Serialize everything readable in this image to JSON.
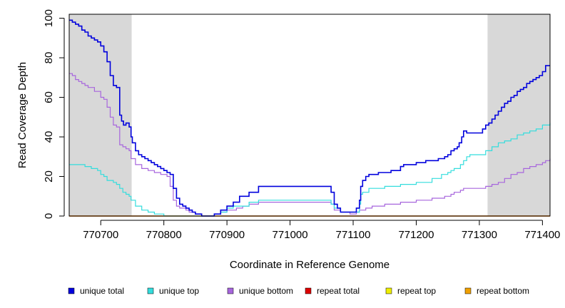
{
  "chart_data": {
    "type": "line",
    "title": "",
    "xlabel": "Coordinate in Reference Genome",
    "ylabel": "Read Coverage Depth",
    "xlim": [
      770650,
      771412
    ],
    "ylim": [
      0,
      102
    ],
    "x_ticks": [
      770700,
      770800,
      770900,
      771000,
      771100,
      771200,
      771300,
      771400
    ],
    "y_ticks": [
      0,
      20,
      40,
      60,
      80,
      100
    ],
    "grid": false,
    "legend_position": "bottom",
    "shaded_regions": [
      {
        "start": 770650,
        "end": 770749,
        "color": "#d8d8d8"
      },
      {
        "start": 771313,
        "end": 771412,
        "color": "#d8d8d8"
      }
    ],
    "series": [
      {
        "name": "unique total",
        "color": "#0000dd",
        "points": [
          [
            770650,
            99
          ],
          [
            770655,
            98
          ],
          [
            770660,
            97
          ],
          [
            770665,
            96
          ],
          [
            770670,
            94
          ],
          [
            770675,
            93
          ],
          [
            770680,
            91
          ],
          [
            770685,
            90
          ],
          [
            770690,
            89
          ],
          [
            770695,
            88
          ],
          [
            770700,
            86
          ],
          [
            770705,
            83
          ],
          [
            770710,
            78
          ],
          [
            770715,
            71
          ],
          [
            770720,
            66
          ],
          [
            770725,
            65
          ],
          [
            770730,
            51
          ],
          [
            770733,
            48
          ],
          [
            770736,
            46
          ],
          [
            770740,
            47
          ],
          [
            770745,
            45
          ],
          [
            770748,
            40
          ],
          [
            770750,
            37
          ],
          [
            770755,
            33
          ],
          [
            770760,
            31
          ],
          [
            770765,
            30
          ],
          [
            770770,
            29
          ],
          [
            770775,
            28
          ],
          [
            770780,
            27
          ],
          [
            770785,
            26
          ],
          [
            770790,
            25
          ],
          [
            770795,
            24
          ],
          [
            770800,
            23
          ],
          [
            770805,
            22
          ],
          [
            770810,
            21
          ],
          [
            770815,
            14
          ],
          [
            770820,
            9
          ],
          [
            770825,
            6
          ],
          [
            770830,
            5
          ],
          [
            770835,
            4
          ],
          [
            770840,
            3
          ],
          [
            770845,
            2
          ],
          [
            770850,
            1
          ],
          [
            770860,
            0
          ],
          [
            770870,
            0
          ],
          [
            770880,
            1
          ],
          [
            770890,
            3
          ],
          [
            770900,
            5
          ],
          [
            770910,
            7
          ],
          [
            770920,
            10
          ],
          [
            770935,
            12
          ],
          [
            770950,
            15
          ],
          [
            771060,
            15
          ],
          [
            771065,
            12
          ],
          [
            771070,
            6
          ],
          [
            771075,
            4
          ],
          [
            771080,
            2
          ],
          [
            771100,
            2
          ],
          [
            771105,
            4
          ],
          [
            771110,
            8
          ],
          [
            771112,
            15
          ],
          [
            771115,
            18
          ],
          [
            771120,
            20
          ],
          [
            771125,
            21
          ],
          [
            771140,
            22
          ],
          [
            771160,
            23
          ],
          [
            771175,
            25
          ],
          [
            771180,
            26
          ],
          [
            771200,
            27
          ],
          [
            771215,
            28
          ],
          [
            771235,
            29
          ],
          [
            771245,
            30
          ],
          [
            771250,
            31
          ],
          [
            771255,
            33
          ],
          [
            771260,
            34
          ],
          [
            771265,
            35
          ],
          [
            771268,
            37
          ],
          [
            771272,
            40
          ],
          [
            771275,
            43
          ],
          [
            771280,
            42
          ],
          [
            771300,
            42
          ],
          [
            771305,
            44
          ],
          [
            771310,
            46
          ],
          [
            771315,
            47
          ],
          [
            771320,
            49
          ],
          [
            771325,
            51
          ],
          [
            771330,
            53
          ],
          [
            771335,
            55
          ],
          [
            771340,
            57
          ],
          [
            771345,
            58
          ],
          [
            771350,
            60
          ],
          [
            771355,
            61
          ],
          [
            771360,
            63
          ],
          [
            771365,
            64
          ],
          [
            771370,
            65
          ],
          [
            771375,
            67
          ],
          [
            771380,
            68
          ],
          [
            771385,
            69
          ],
          [
            771390,
            70
          ],
          [
            771395,
            71
          ],
          [
            771400,
            73
          ],
          [
            771405,
            76
          ],
          [
            771412,
            76
          ]
        ]
      },
      {
        "name": "unique top",
        "color": "#33dddd",
        "points": [
          [
            770650,
            26
          ],
          [
            770670,
            26
          ],
          [
            770675,
            25
          ],
          [
            770685,
            24
          ],
          [
            770695,
            23
          ],
          [
            770700,
            21
          ],
          [
            770705,
            20
          ],
          [
            770710,
            18
          ],
          [
            770720,
            17
          ],
          [
            770725,
            16
          ],
          [
            770730,
            14
          ],
          [
            770735,
            12
          ],
          [
            770740,
            11
          ],
          [
            770745,
            10
          ],
          [
            770748,
            8
          ],
          [
            770755,
            5
          ],
          [
            770765,
            3
          ],
          [
            770775,
            2
          ],
          [
            770785,
            1
          ],
          [
            770800,
            0
          ],
          [
            770870,
            0
          ],
          [
            770880,
            1
          ],
          [
            770890,
            2
          ],
          [
            770900,
            4
          ],
          [
            770910,
            5
          ],
          [
            770935,
            7
          ],
          [
            770950,
            8
          ],
          [
            771060,
            8
          ],
          [
            771065,
            6
          ],
          [
            771070,
            4
          ],
          [
            771080,
            2
          ],
          [
            771100,
            2
          ],
          [
            771110,
            6
          ],
          [
            771112,
            11
          ],
          [
            771115,
            12
          ],
          [
            771125,
            14
          ],
          [
            771150,
            15
          ],
          [
            771175,
            16
          ],
          [
            771200,
            17
          ],
          [
            771225,
            19
          ],
          [
            771240,
            21
          ],
          [
            771250,
            22
          ],
          [
            771255,
            23
          ],
          [
            771260,
            24
          ],
          [
            771270,
            26
          ],
          [
            771275,
            28
          ],
          [
            771280,
            30
          ],
          [
            771285,
            31
          ],
          [
            771300,
            31
          ],
          [
            771310,
            33
          ],
          [
            771320,
            35
          ],
          [
            771330,
            37
          ],
          [
            771340,
            38
          ],
          [
            771350,
            39
          ],
          [
            771360,
            41
          ],
          [
            771370,
            42
          ],
          [
            771380,
            43
          ],
          [
            771390,
            44
          ],
          [
            771400,
            46
          ],
          [
            771412,
            47
          ]
        ]
      },
      {
        "name": "unique bottom",
        "color": "#a766dd",
        "points": [
          [
            770650,
            72
          ],
          [
            770655,
            71
          ],
          [
            770660,
            69
          ],
          [
            770665,
            68
          ],
          [
            770670,
            67
          ],
          [
            770675,
            66
          ],
          [
            770680,
            65
          ],
          [
            770690,
            63
          ],
          [
            770700,
            60
          ],
          [
            770705,
            59
          ],
          [
            770710,
            55
          ],
          [
            770715,
            50
          ],
          [
            770720,
            46
          ],
          [
            770725,
            45
          ],
          [
            770730,
            36
          ],
          [
            770735,
            35
          ],
          [
            770740,
            34
          ],
          [
            770745,
            33
          ],
          [
            770748,
            29
          ],
          [
            770755,
            26
          ],
          [
            770765,
            24
          ],
          [
            770775,
            23
          ],
          [
            770785,
            22
          ],
          [
            770795,
            21
          ],
          [
            770805,
            20
          ],
          [
            770810,
            15
          ],
          [
            770815,
            8
          ],
          [
            770820,
            5
          ],
          [
            770825,
            4
          ],
          [
            770835,
            3
          ],
          [
            770840,
            2
          ],
          [
            770850,
            1
          ],
          [
            770860,
            0
          ],
          [
            770870,
            0
          ],
          [
            770880,
            1
          ],
          [
            770890,
            2
          ],
          [
            770900,
            3
          ],
          [
            770915,
            4
          ],
          [
            770925,
            5
          ],
          [
            770935,
            6
          ],
          [
            770950,
            7
          ],
          [
            771060,
            7
          ],
          [
            771065,
            6
          ],
          [
            771070,
            3
          ],
          [
            771080,
            2
          ],
          [
            771095,
            1
          ],
          [
            771105,
            2
          ],
          [
            771110,
            3
          ],
          [
            771120,
            4
          ],
          [
            771130,
            5
          ],
          [
            771150,
            6
          ],
          [
            771175,
            7
          ],
          [
            771200,
            8
          ],
          [
            771225,
            9
          ],
          [
            771245,
            10
          ],
          [
            771255,
            11
          ],
          [
            771260,
            12
          ],
          [
            771270,
            13
          ],
          [
            771275,
            14
          ],
          [
            771300,
            14
          ],
          [
            771310,
            15
          ],
          [
            771320,
            16
          ],
          [
            771330,
            17
          ],
          [
            771340,
            19
          ],
          [
            771350,
            21
          ],
          [
            771360,
            22
          ],
          [
            771370,
            24
          ],
          [
            771380,
            25
          ],
          [
            771390,
            26
          ],
          [
            771400,
            27
          ],
          [
            771405,
            28
          ],
          [
            771412,
            29
          ]
        ]
      },
      {
        "name": "repeat total",
        "color": "#dd0000",
        "points": [
          [
            770650,
            0
          ],
          [
            771412,
            0
          ]
        ]
      },
      {
        "name": "repeat top",
        "color": "#eeee00",
        "points": [
          [
            770650,
            0
          ],
          [
            771412,
            0
          ]
        ]
      },
      {
        "name": "repeat bottom",
        "color": "#f0a000",
        "points": [
          [
            770650,
            0
          ],
          [
            771412,
            0
          ]
        ]
      }
    ]
  }
}
